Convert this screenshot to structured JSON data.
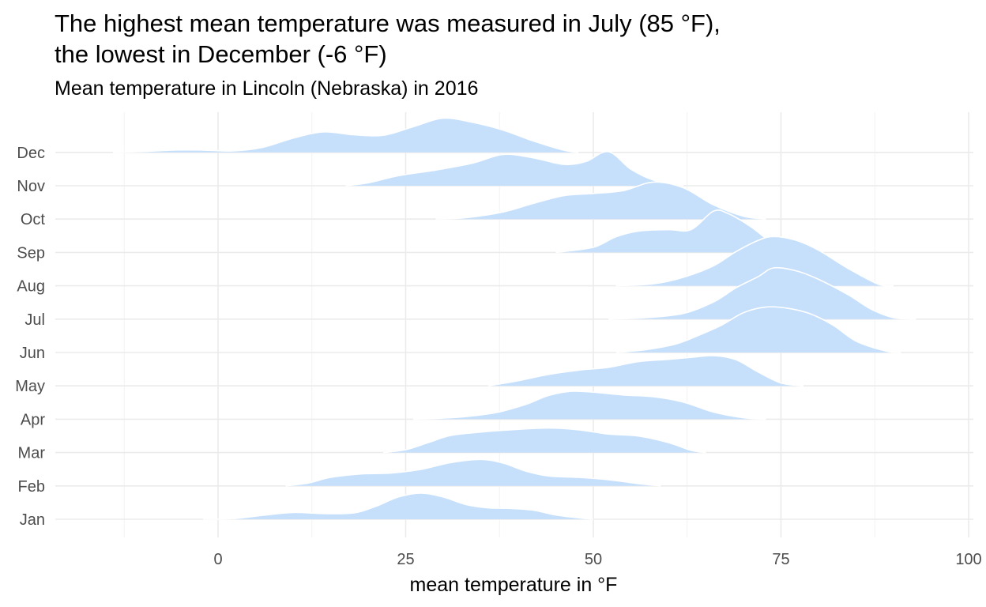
{
  "chart_data": {
    "type": "ridgeline",
    "title_lines": [
      "The highest mean temperature was measured in July (85 °F),",
      "the lowest in December (-6 °F)"
    ],
    "subtitle": "Mean temperature in Lincoln (Nebraska) in 2016",
    "xlabel": "mean temperature in °F",
    "ylabel": "",
    "xlim": [
      -22.5,
      100
    ],
    "x_ticks": [
      "0",
      "25",
      "50",
      "75",
      "100"
    ],
    "categories": [
      "Jan",
      "Feb",
      "Mar",
      "Apr",
      "May",
      "Jun",
      "Jul",
      "Aug",
      "Sep",
      "Oct",
      "Nov",
      "Dec"
    ],
    "fill_color": "#c6e0fc",
    "outline_color": "#ffffff",
    "grid": true,
    "series": [
      {
        "name": "Jan",
        "points": [
          [
            -2,
            0
          ],
          [
            2,
            0.02
          ],
          [
            6,
            0.14
          ],
          [
            10,
            0.24
          ],
          [
            14,
            0.2
          ],
          [
            18,
            0.22
          ],
          [
            21,
            0.45
          ],
          [
            24,
            0.78
          ],
          [
            27,
            0.92
          ],
          [
            30,
            0.78
          ],
          [
            33,
            0.52
          ],
          [
            36,
            0.4
          ],
          [
            39,
            0.38
          ],
          [
            42,
            0.32
          ],
          [
            45,
            0.15
          ],
          [
            48,
            0.05
          ],
          [
            50,
            0
          ]
        ]
      },
      {
        "name": "Feb",
        "points": [
          [
            9,
            0
          ],
          [
            12,
            0.1
          ],
          [
            15,
            0.3
          ],
          [
            19,
            0.42
          ],
          [
            23,
            0.45
          ],
          [
            27,
            0.58
          ],
          [
            31,
            0.82
          ],
          [
            35,
            0.93
          ],
          [
            38,
            0.8
          ],
          [
            41,
            0.52
          ],
          [
            44,
            0.35
          ],
          [
            48,
            0.3
          ],
          [
            52,
            0.22
          ],
          [
            56,
            0.08
          ],
          [
            59,
            0
          ]
        ]
      },
      {
        "name": "Mar",
        "points": [
          [
            22,
            0
          ],
          [
            25,
            0.1
          ],
          [
            28,
            0.35
          ],
          [
            31,
            0.6
          ],
          [
            35,
            0.72
          ],
          [
            39,
            0.8
          ],
          [
            44,
            0.86
          ],
          [
            48,
            0.8
          ],
          [
            52,
            0.65
          ],
          [
            56,
            0.58
          ],
          [
            60,
            0.35
          ],
          [
            63,
            0.08
          ],
          [
            65,
            0
          ]
        ]
      },
      {
        "name": "Apr",
        "points": [
          [
            26,
            0
          ],
          [
            32,
            0.07
          ],
          [
            37,
            0.23
          ],
          [
            41,
            0.52
          ],
          [
            44,
            0.83
          ],
          [
            47,
            0.98
          ],
          [
            50,
            0.95
          ],
          [
            54,
            0.85
          ],
          [
            58,
            0.79
          ],
          [
            62,
            0.6
          ],
          [
            66,
            0.25
          ],
          [
            70,
            0.05
          ],
          [
            73,
            0
          ]
        ]
      },
      {
        "name": "May",
        "points": [
          [
            36,
            0
          ],
          [
            40,
            0.18
          ],
          [
            44,
            0.4
          ],
          [
            48,
            0.55
          ],
          [
            52,
            0.65
          ],
          [
            56,
            0.85
          ],
          [
            60,
            0.93
          ],
          [
            63,
            1.0
          ],
          [
            66,
            1.06
          ],
          [
            69,
            0.92
          ],
          [
            72,
            0.48
          ],
          [
            75,
            0.1
          ],
          [
            78,
            0
          ]
        ]
      },
      {
        "name": "Jun",
        "points": [
          [
            53,
            0
          ],
          [
            57,
            0.1
          ],
          [
            61,
            0.3
          ],
          [
            64,
            0.6
          ],
          [
            67,
            0.95
          ],
          [
            70,
            1.4
          ],
          [
            73,
            1.6
          ],
          [
            76,
            1.55
          ],
          [
            79,
            1.35
          ],
          [
            82,
            0.95
          ],
          [
            85,
            0.4
          ],
          [
            89,
            0.05
          ],
          [
            91,
            0
          ]
        ]
      },
      {
        "name": "Jul",
        "points": [
          [
            52,
            0
          ],
          [
            57,
            0.05
          ],
          [
            62,
            0.2
          ],
          [
            66,
            0.6
          ],
          [
            69,
            1.1
          ],
          [
            72,
            1.5
          ],
          [
            74,
            1.8
          ],
          [
            77,
            1.7
          ],
          [
            80,
            1.4
          ],
          [
            84,
            0.85
          ],
          [
            87,
            0.35
          ],
          [
            90,
            0.05
          ],
          [
            93,
            0
          ]
        ]
      },
      {
        "name": "Aug",
        "points": [
          [
            53,
            0
          ],
          [
            58,
            0.07
          ],
          [
            62,
            0.3
          ],
          [
            66,
            0.7
          ],
          [
            69,
            1.2
          ],
          [
            72,
            1.6
          ],
          [
            74,
            1.73
          ],
          [
            77,
            1.6
          ],
          [
            80,
            1.25
          ],
          [
            84,
            0.6
          ],
          [
            88,
            0.05
          ],
          [
            90,
            0
          ]
        ]
      },
      {
        "name": "Sep",
        "points": [
          [
            45,
            0
          ],
          [
            50,
            0.18
          ],
          [
            53,
            0.55
          ],
          [
            56,
            0.75
          ],
          [
            60,
            0.8
          ],
          [
            63,
            0.8
          ],
          [
            66,
            1.45
          ],
          [
            68,
            1.36
          ],
          [
            71,
            0.9
          ],
          [
            74,
            0.3
          ],
          [
            76,
            0.1
          ],
          [
            80,
            0
          ]
        ]
      },
      {
        "name": "Oct",
        "points": [
          [
            29,
            0
          ],
          [
            33,
            0.05
          ],
          [
            38,
            0.25
          ],
          [
            42,
            0.55
          ],
          [
            46,
            0.82
          ],
          [
            50,
            0.9
          ],
          [
            54,
            1.0
          ],
          [
            58,
            1.3
          ],
          [
            62,
            1.1
          ],
          [
            66,
            0.5
          ],
          [
            70,
            0.1
          ],
          [
            73,
            0
          ]
        ]
      },
      {
        "name": "Nov",
        "points": [
          [
            17,
            0
          ],
          [
            20,
            0.1
          ],
          [
            24,
            0.35
          ],
          [
            29,
            0.55
          ],
          [
            34,
            0.8
          ],
          [
            38,
            1.1
          ],
          [
            42,
            0.98
          ],
          [
            46,
            0.75
          ],
          [
            49,
            0.85
          ],
          [
            52,
            1.2
          ],
          [
            55,
            0.58
          ],
          [
            58,
            0.2
          ],
          [
            62,
            0
          ]
        ]
      },
      {
        "name": "Dec",
        "points": [
          [
            -14,
            0
          ],
          [
            -10,
            0.03
          ],
          [
            -6,
            0.08
          ],
          [
            -2,
            0.08
          ],
          [
            2,
            0.05
          ],
          [
            6,
            0.18
          ],
          [
            10,
            0.5
          ],
          [
            14,
            0.72
          ],
          [
            18,
            0.62
          ],
          [
            22,
            0.6
          ],
          [
            26,
            0.9
          ],
          [
            30,
            1.2
          ],
          [
            34,
            1.05
          ],
          [
            38,
            0.78
          ],
          [
            42,
            0.4
          ],
          [
            46,
            0.08
          ],
          [
            48,
            0
          ]
        ]
      }
    ]
  }
}
